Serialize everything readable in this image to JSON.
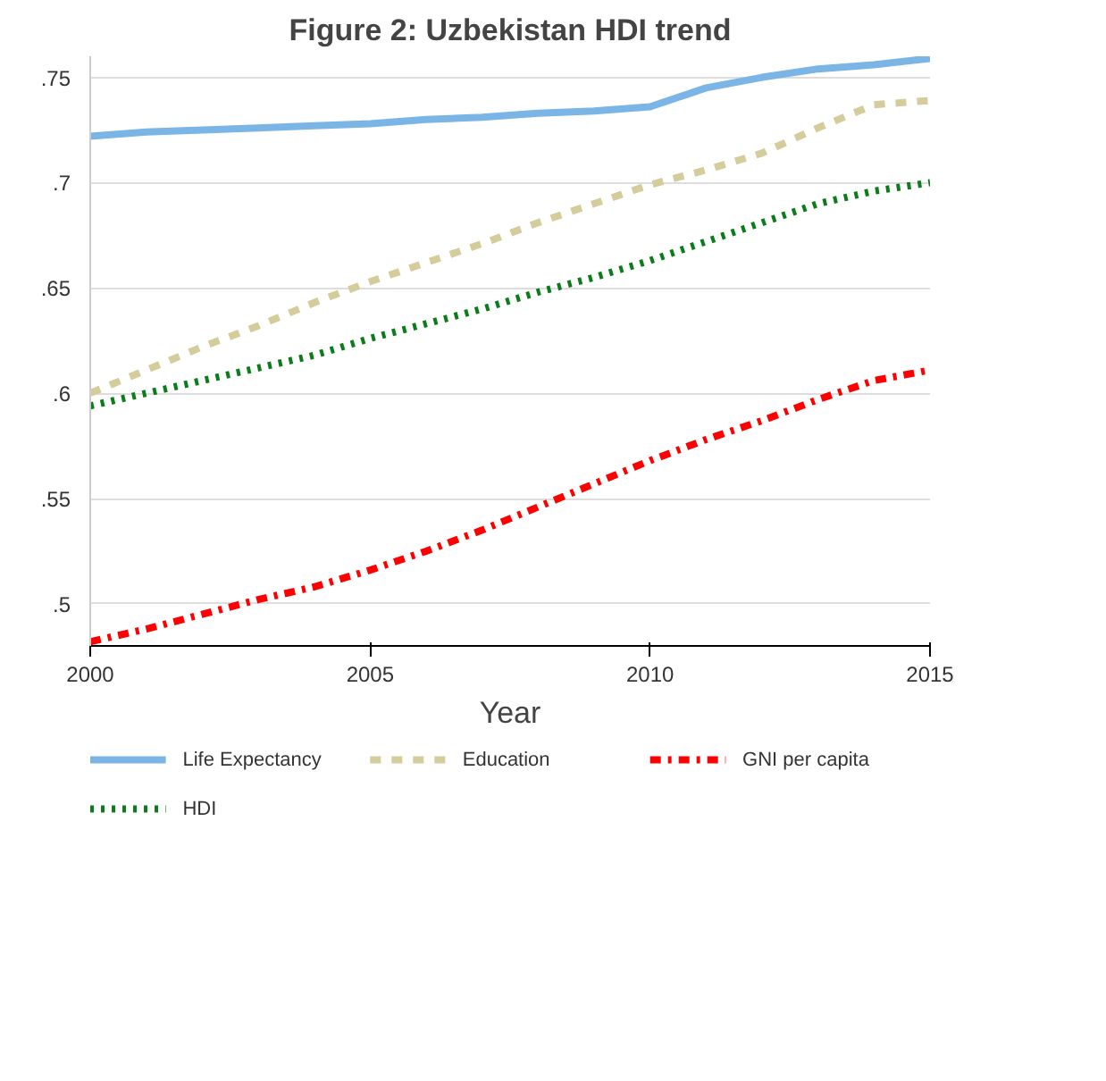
{
  "chart_data": {
    "type": "line",
    "title": "Figure 2: Uzbekistan HDI trend",
    "xlabel": "Year",
    "x": [
      2000,
      2001,
      2002,
      2003,
      2004,
      2005,
      2006,
      2007,
      2008,
      2009,
      2010,
      2011,
      2012,
      2013,
      2014,
      2015
    ],
    "series": [
      {
        "name": "Life Expectancy",
        "color": "#7ab5e6",
        "line_style": "solid",
        "values": [
          0.722,
          0.724,
          0.725,
          0.726,
          0.727,
          0.728,
          0.73,
          0.731,
          0.733,
          0.734,
          0.736,
          0.745,
          0.75,
          0.754,
          0.756,
          0.759
        ]
      },
      {
        "name": "Education",
        "color": "#d4cc9a",
        "line_style": "dashed",
        "values": [
          0.6,
          0.611,
          0.622,
          0.632,
          0.643,
          0.653,
          0.662,
          0.671,
          0.681,
          0.69,
          0.699,
          0.706,
          0.714,
          0.726,
          0.737,
          0.739
        ]
      },
      {
        "name": "GNI per capita",
        "color": "#ff0000",
        "line_style": "dashdot",
        "values": [
          0.482,
          0.488,
          0.495,
          0.502,
          0.508,
          0.516,
          0.525,
          0.535,
          0.546,
          0.557,
          0.568,
          0.578,
          0.587,
          0.597,
          0.606,
          0.611
        ]
      },
      {
        "name": "HDI",
        "color": "#0a7d1a",
        "line_style": "dotted",
        "values": [
          0.594,
          0.6,
          0.606,
          0.612,
          0.618,
          0.626,
          0.633,
          0.64,
          0.648,
          0.655,
          0.663,
          0.672,
          0.681,
          0.69,
          0.696,
          0.7
        ]
      }
    ],
    "xlim": [
      2000,
      2015
    ],
    "xticks": [
      2000,
      2005,
      2010,
      2015
    ],
    "ylim": [
      0.48,
      0.76
    ],
    "yticks": [
      {
        "value": 0.5,
        "label": ".5"
      },
      {
        "value": 0.55,
        "label": ".55"
      },
      {
        "value": 0.6,
        "label": ".6"
      },
      {
        "value": 0.65,
        "label": ".65"
      },
      {
        "value": 0.7,
        "label": ".7"
      },
      {
        "value": 0.75,
        "label": ".75"
      }
    ],
    "grid": "y",
    "legend": "bottom"
  }
}
